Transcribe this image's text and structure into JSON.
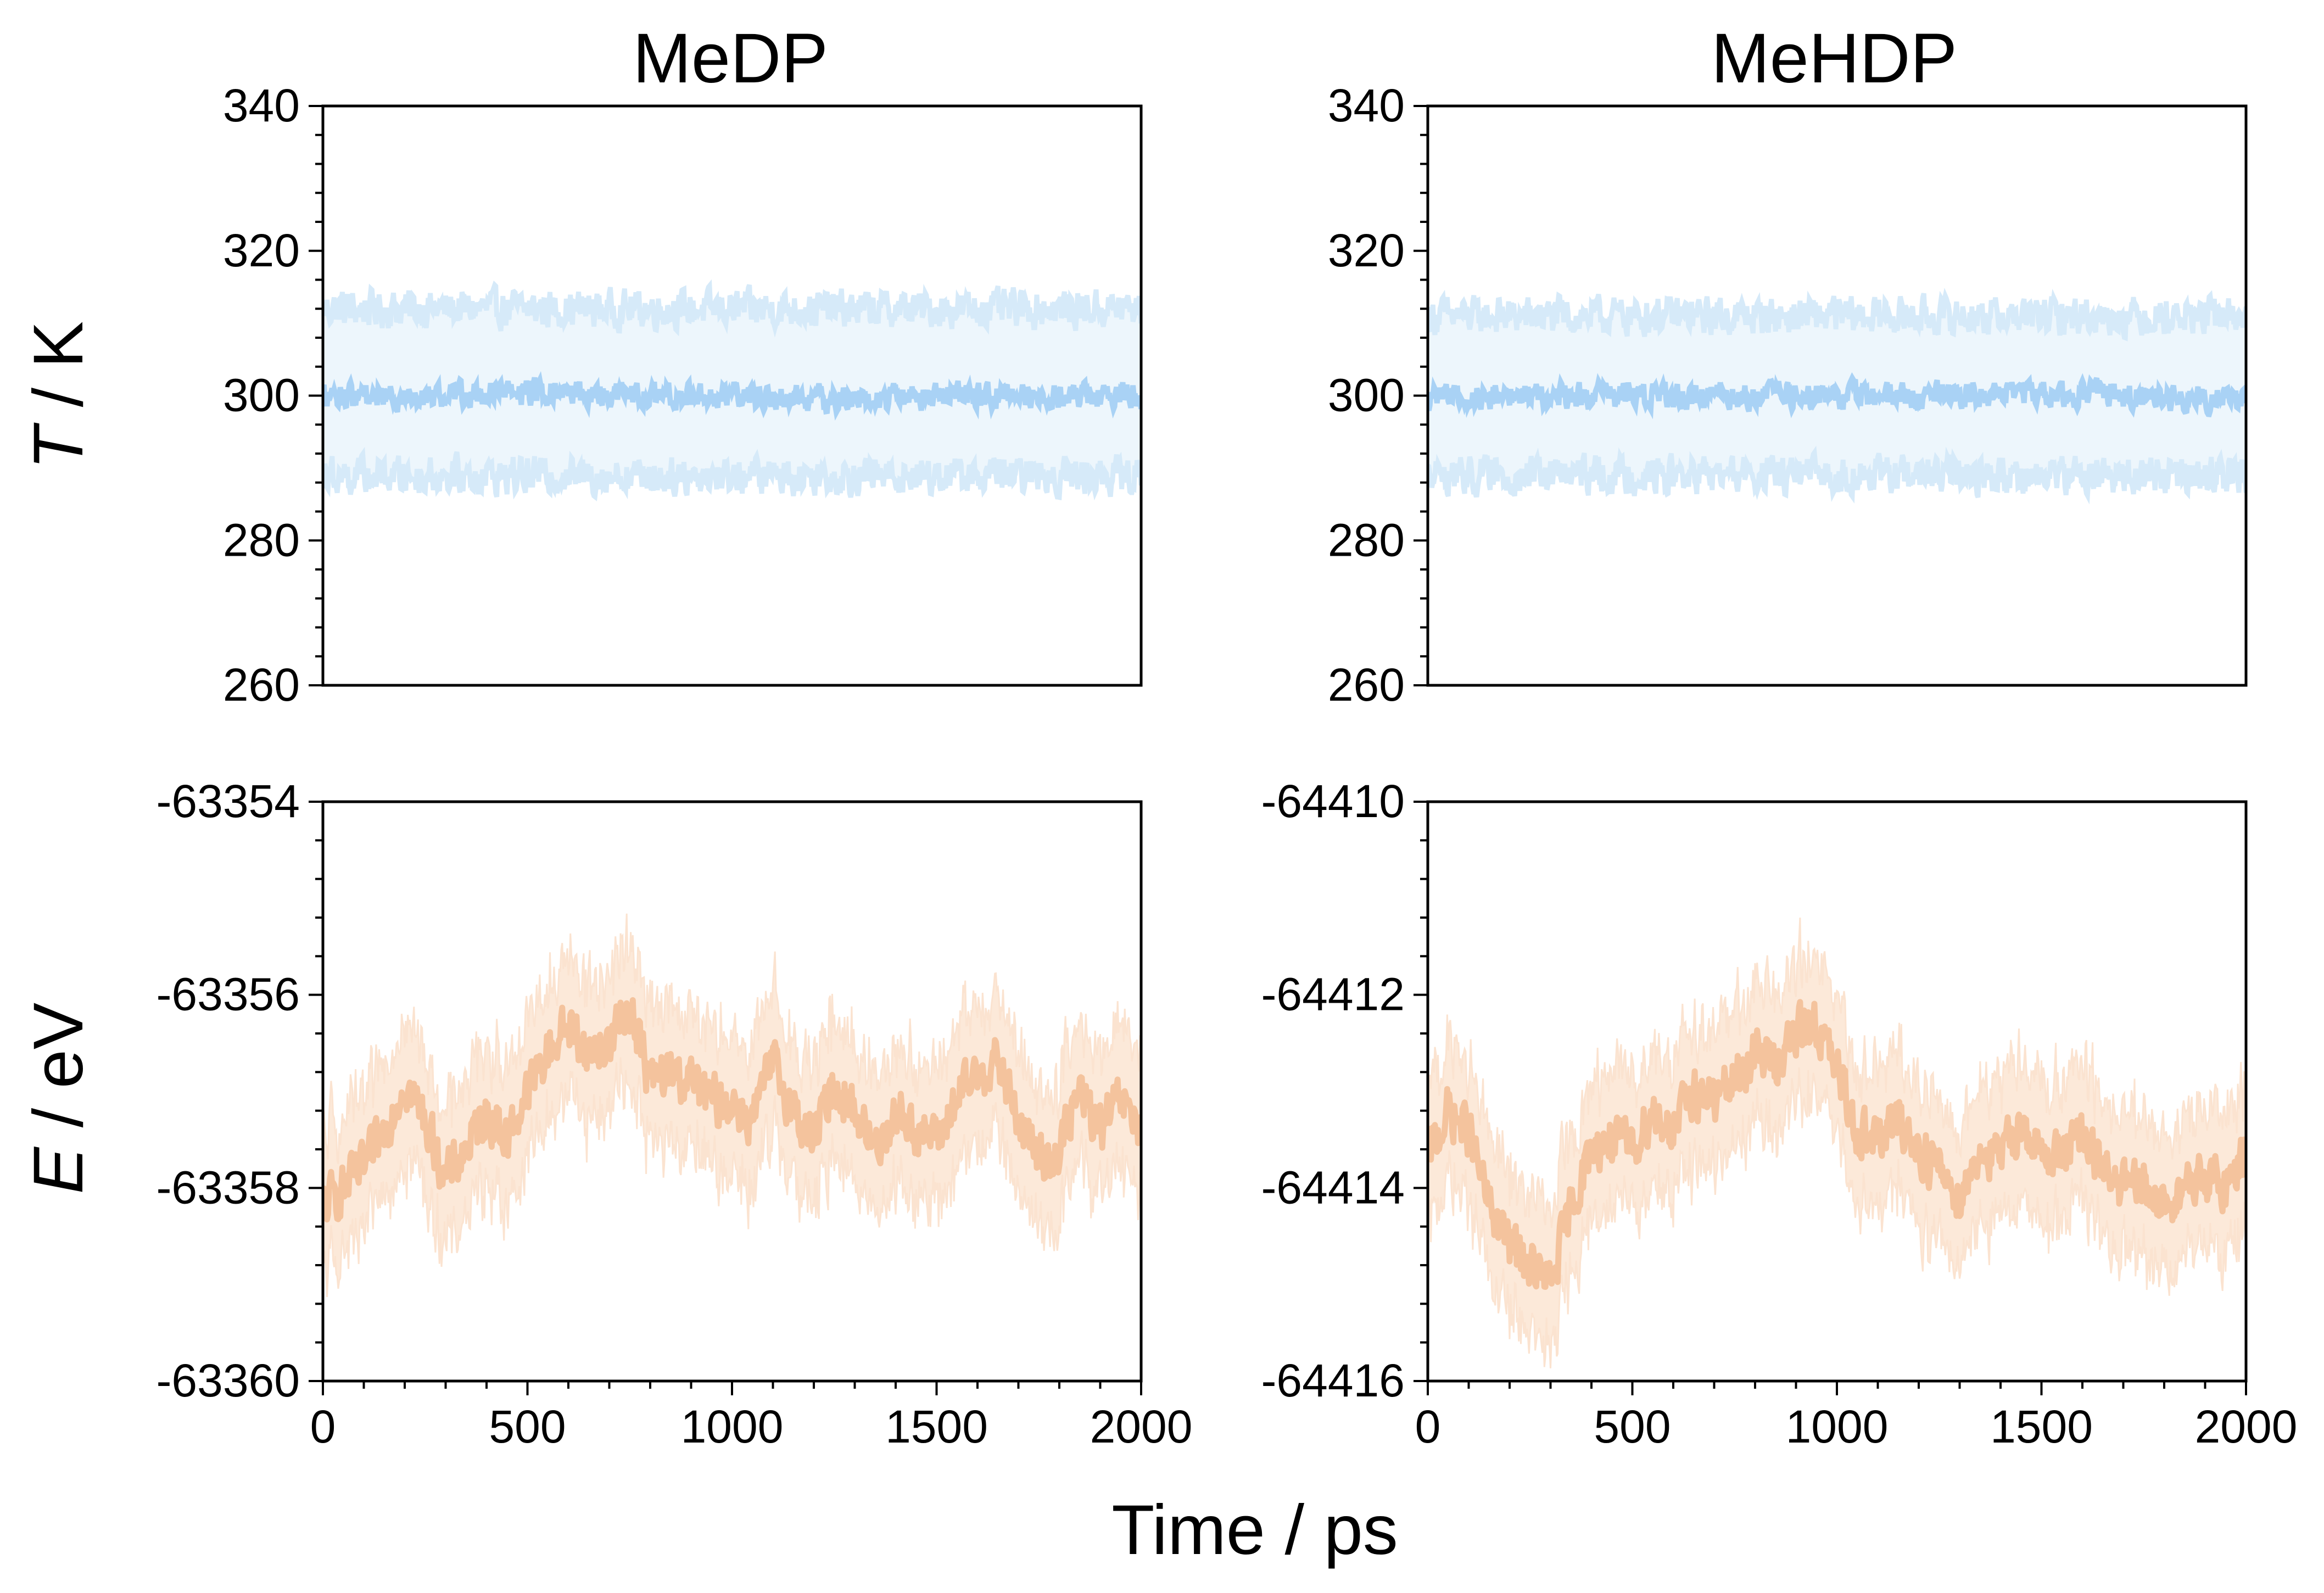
{
  "figure": {
    "column_titles": [
      "MeDP",
      "MeHDP"
    ],
    "row_labels": [
      {
        "italic": "T",
        "rest": " / K"
      },
      {
        "italic": "E",
        "rest": " / eV"
      }
    ],
    "shared_xlabel": "Time / ps"
  },
  "chart_data": [
    {
      "id": "medp-temperature",
      "type": "line",
      "title": "MeDP",
      "xlabel": "",
      "ylabel": "T / K",
      "xlim": [
        0,
        2000
      ],
      "ylim": [
        260,
        340
      ],
      "yticks": [
        260,
        280,
        300,
        320,
        340
      ],
      "ytick_labels": [
        "260",
        "280",
        "300",
        "320",
        "340"
      ],
      "xticks_shown": false,
      "series": [
        {
          "role": "mean",
          "color": "#a9d2f5",
          "x": [
            0,
            250,
            500,
            750,
            1000,
            1250,
            1500,
            1750,
            2000
          ],
          "values": [
            300,
            300,
            300.5,
            300,
            300,
            299.5,
            300,
            300,
            300
          ],
          "noise": 2.5
        },
        {
          "role": "band",
          "color": "#d6eaf9",
          "x": [
            0,
            2000
          ],
          "upper": [
            312,
            312
          ],
          "lower": [
            289,
            289
          ],
          "noise": 3.5
        }
      ]
    },
    {
      "id": "mehdp-temperature",
      "type": "line",
      "title": "MeHDP",
      "xlabel": "",
      "ylabel": "",
      "xlim": [
        0,
        2000
      ],
      "ylim": [
        260,
        340
      ],
      "yticks": [
        260,
        280,
        300,
        320,
        340
      ],
      "ytick_labels": [
        "260",
        "280",
        "300",
        "320",
        "340"
      ],
      "xticks_shown": false,
      "series": [
        {
          "role": "mean",
          "color": "#a9d2f5",
          "x": [
            0,
            250,
            500,
            750,
            1000,
            1250,
            1500,
            1750,
            2000
          ],
          "values": [
            300,
            300,
            300,
            300,
            300,
            300,
            300.5,
            300,
            299.5
          ],
          "noise": 2.5
        },
        {
          "role": "band",
          "color": "#d6eaf9",
          "x": [
            0,
            2000
          ],
          "upper": [
            311,
            311
          ],
          "lower": [
            289,
            289
          ],
          "noise": 3.5
        }
      ]
    },
    {
      "id": "medp-energy",
      "type": "line",
      "title": "",
      "xlabel": "",
      "ylabel": "E / eV",
      "xlim": [
        0,
        2000
      ],
      "ylim": [
        -63360,
        -63354
      ],
      "yticks": [
        -63360,
        -63358,
        -63356,
        -63354
      ],
      "ytick_labels": [
        "-63360",
        "-63358",
        "-63356",
        "-63354"
      ],
      "xticks": [
        0,
        500,
        1000,
        1500,
        2000
      ],
      "xtick_labels": [
        "0",
        "500",
        "1000",
        "1500",
        "2000"
      ],
      "series": [
        {
          "role": "mean",
          "color": "#f4c39d",
          "x": [
            0,
            50,
            100,
            150,
            200,
            250,
            300,
            350,
            400,
            450,
            500,
            550,
            600,
            650,
            700,
            750,
            800,
            850,
            900,
            950,
            1000,
            1050,
            1100,
            1150,
            1200,
            1250,
            1300,
            1350,
            1400,
            1450,
            1500,
            1550,
            1600,
            1650,
            1700,
            1750,
            1800,
            1850,
            1900,
            1950,
            2000
          ],
          "values": [
            -63358.2,
            -63358.0,
            -63357.8,
            -63357.4,
            -63356.9,
            -63357.3,
            -63357.9,
            -63357.6,
            -63357.2,
            -63357.5,
            -63357.0,
            -63356.6,
            -63356.3,
            -63356.6,
            -63356.5,
            -63356.1,
            -63356.9,
            -63356.8,
            -63356.9,
            -63357.1,
            -63357.1,
            -63357.3,
            -63356.7,
            -63357.2,
            -63357.5,
            -63356.9,
            -63357.2,
            -63357.6,
            -63357.2,
            -63357.4,
            -63357.5,
            -63357.1,
            -63356.8,
            -63356.7,
            -63357.3,
            -63357.7,
            -63357.6,
            -63357.0,
            -63357.4,
            -63357.1,
            -63357.4
          ],
          "noise": 0.35
        },
        {
          "role": "band",
          "color": "#fbe3d0",
          "halfwidth": 0.9,
          "noise": 0.3
        }
      ]
    },
    {
      "id": "mehdp-energy",
      "type": "line",
      "title": "",
      "xlabel": "",
      "ylabel": "",
      "xlim": [
        0,
        2000
      ],
      "ylim": [
        -64416,
        -64410
      ],
      "yticks": [
        -64416,
        -64414,
        -64412,
        -64410
      ],
      "ytick_labels": [
        "-64416",
        "-64414",
        "-64412",
        "-64410"
      ],
      "xticks": [
        0,
        500,
        1000,
        1500,
        2000
      ],
      "xtick_labels": [
        "0",
        "500",
        "1000",
        "1500",
        "2000"
      ],
      "series": [
        {
          "role": "mean",
          "color": "#f4c39d",
          "x": [
            0,
            50,
            100,
            150,
            200,
            250,
            300,
            350,
            400,
            450,
            500,
            550,
            600,
            650,
            700,
            750,
            800,
            850,
            900,
            950,
            1000,
            1050,
            1100,
            1150,
            1200,
            1250,
            1300,
            1350,
            1400,
            1450,
            1500,
            1550,
            1600,
            1650,
            1700,
            1750,
            1800,
            1850,
            1900,
            1950,
            2000
          ],
          "values": [
            -64413.7,
            -64413.2,
            -64413.4,
            -64414.2,
            -64414.6,
            -64414.8,
            -64415.0,
            -64414.2,
            -64413.6,
            -64413.5,
            -64413.6,
            -64413.2,
            -64413.4,
            -64413.0,
            -64413.1,
            -64412.9,
            -64412.6,
            -64412.7,
            -64412.4,
            -64412.3,
            -64412.8,
            -64413.4,
            -64413.5,
            -64413.3,
            -64413.6,
            -64413.8,
            -64414.1,
            -64413.6,
            -64413.7,
            -64413.3,
            -64413.7,
            -64413.6,
            -64413.5,
            -64413.8,
            -64414.0,
            -64414.0,
            -64414.2,
            -64414.0,
            -64413.9,
            -64414.0,
            -64413.6
          ],
          "noise": 0.35
        },
        {
          "role": "band",
          "color": "#fbe3d0",
          "halfwidth": 0.9,
          "noise": 0.3
        }
      ]
    }
  ]
}
